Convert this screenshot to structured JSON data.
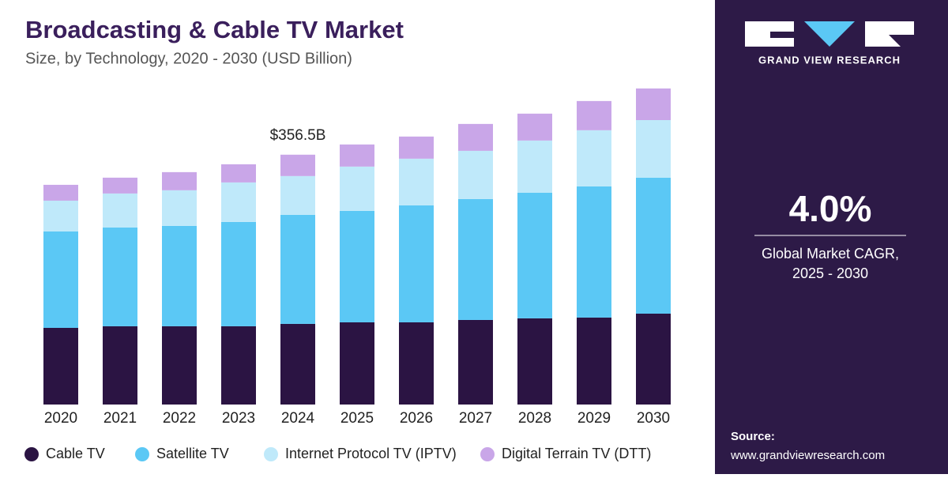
{
  "chart_data": {
    "type": "stacked-bar",
    "title": "Broadcasting & Cable TV Market",
    "subtitle": "Size, by Technology, 2020 - 2030 (USD Billion)",
    "categories": [
      "2020",
      "2021",
      "2022",
      "2023",
      "2024",
      "2025",
      "2026",
      "2027",
      "2028",
      "2029",
      "2030"
    ],
    "series": [
      {
        "name": "Cable TV",
        "color": "#2b1443",
        "values": [
          109.4,
          111.7,
          111.7,
          111.7,
          115.1,
          117.3,
          117.3,
          120.7,
          123.0,
          124.1,
          129.7
        ]
      },
      {
        "name": "Satellite TV",
        "color": "#5bc8f5",
        "values": [
          137.6,
          141.0,
          143.3,
          148.9,
          155.7,
          159.1,
          167.0,
          172.6,
          179.4,
          187.3,
          194.0
        ]
      },
      {
        "name": "Internet Protocol TV (IPTV)",
        "color": "#bfe9fa",
        "values": [
          44.0,
          48.5,
          50.8,
          56.4,
          55.3,
          63.2,
          66.6,
          68.8,
          74.4,
          80.1,
          82.3
        ]
      },
      {
        "name": "Digital Terrain TV (DTT)",
        "color": "#c9a6e8",
        "values": [
          22.6,
          22.6,
          25.9,
          25.9,
          30.5,
          31.6,
          31.6,
          38.4,
          38.4,
          41.7,
          45.1
        ]
      }
    ],
    "annotation": {
      "label": "$356.5B",
      "category": "2024"
    }
  },
  "sidebar": {
    "brand": "GRAND VIEW RESEARCH",
    "cagr": "4.0%",
    "cagr_caption_line1": "Global Market CAGR,",
    "cagr_caption_line2": "2025 - 2030",
    "source_label": "Source:",
    "source_url": "www.grandviewresearch.com"
  }
}
